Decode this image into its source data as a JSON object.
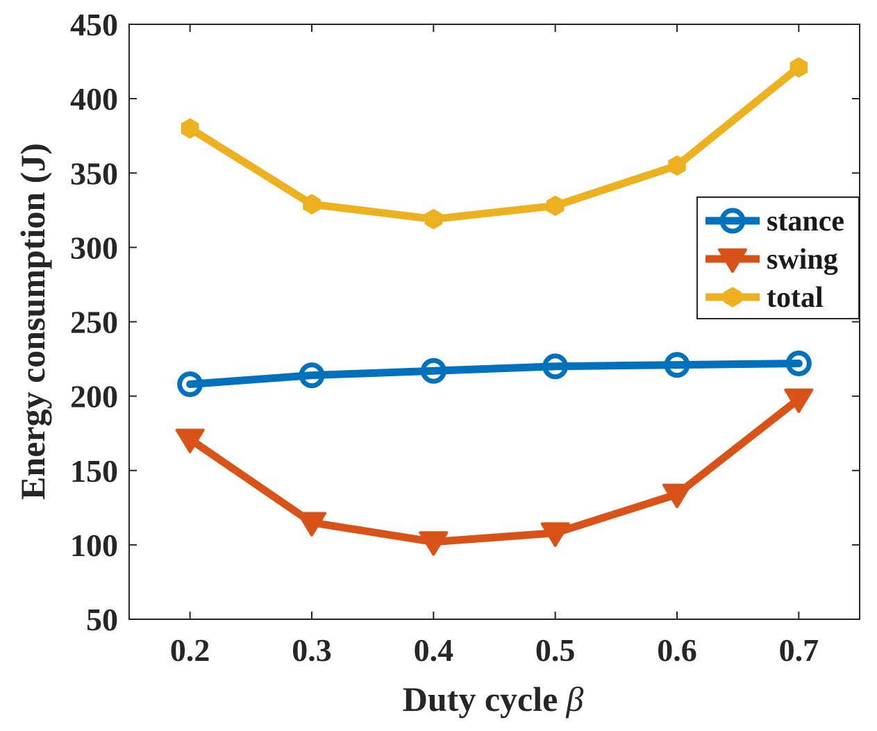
{
  "chart_data": {
    "type": "line",
    "title": "",
    "xlabel": "Duty cycle",
    "xlabel_symbol": "β",
    "ylabel": "Energy consumption (J)",
    "x": [
      0.2,
      0.3,
      0.4,
      0.5,
      0.6,
      0.7
    ],
    "x_tick_labels": [
      "0.2",
      "0.3",
      "0.4",
      "0.5",
      "0.6",
      "0.7"
    ],
    "xlim": [
      0.15,
      0.75
    ],
    "ylim": [
      50,
      450
    ],
    "y_ticks": [
      50,
      100,
      150,
      200,
      250,
      300,
      350,
      400,
      450
    ],
    "y_tick_labels": [
      "50",
      "100",
      "150",
      "200",
      "250",
      "300",
      "350",
      "400",
      "450"
    ],
    "grid": false,
    "legend_position": "center-right",
    "series": [
      {
        "name": "stance",
        "marker": "circle",
        "color": "#0072BD",
        "values": [
          208,
          214,
          217,
          220,
          221,
          222
        ]
      },
      {
        "name": "swing",
        "marker": "triangle-down",
        "color": "#D95319",
        "values": [
          171,
          115,
          102,
          108,
          134,
          198
        ]
      },
      {
        "name": "total",
        "marker": "hexagon",
        "color": "#EDB120",
        "values": [
          380,
          329,
          319,
          328,
          355,
          421
        ]
      }
    ]
  }
}
